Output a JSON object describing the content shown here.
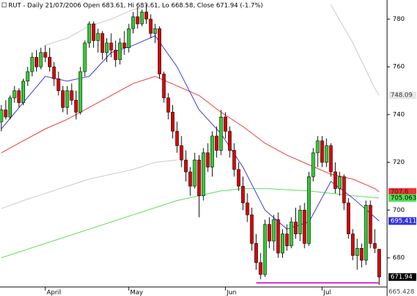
{
  "chart_data": {
    "type": "candlestick",
    "title": "RUT - Daily 21/07/2006 Open 683.61, Hi 683.61, Lo 668.58, Close 671.94 (-1.7%)",
    "open": [
      737,
      742,
      739,
      747,
      750,
      745,
      754,
      758,
      764,
      760,
      766,
      764,
      760,
      755,
      750,
      743,
      750,
      746,
      741,
      758,
      770,
      778,
      771,
      774,
      766,
      770,
      767,
      763,
      770,
      768,
      776,
      781,
      778,
      783,
      780,
      774,
      776,
      757,
      747,
      741,
      733,
      727,
      721,
      716,
      710,
      721,
      706,
      724,
      718,
      731,
      725,
      739,
      733,
      725,
      717,
      710,
      703,
      698,
      686,
      678,
      673,
      694,
      687,
      696,
      682,
      690,
      685,
      695,
      690,
      700,
      686,
      714,
      724,
      729,
      720,
      727,
      716,
      709,
      714,
      703,
      690,
      681,
      684,
      679,
      702,
      686,
      683.61
    ],
    "high": [
      744,
      746,
      748,
      752,
      751,
      755,
      760,
      766,
      767,
      768,
      769,
      768,
      762,
      758,
      752,
      752,
      753,
      750,
      760,
      771,
      779,
      779,
      776,
      775,
      772,
      774,
      771,
      772,
      775,
      778,
      783,
      785,
      784,
      786,
      782,
      778,
      777,
      758,
      749,
      744,
      737,
      731,
      725,
      718,
      724,
      723,
      726,
      728,
      733,
      735,
      742,
      741,
      735,
      728,
      720,
      714,
      707,
      701,
      690,
      682,
      696,
      697,
      698,
      699,
      692,
      694,
      697,
      701,
      702,
      703,
      716,
      726,
      731,
      731,
      730,
      728,
      720,
      716,
      715,
      705,
      692,
      688,
      686,
      704,
      704,
      692,
      683.61
    ],
    "low": [
      733,
      738,
      738,
      745,
      743,
      744,
      752,
      756,
      758,
      759,
      762,
      758,
      752,
      748,
      741,
      740,
      744,
      738,
      740,
      756,
      768,
      768,
      766,
      763,
      762,
      764,
      760,
      761,
      765,
      766,
      774,
      776,
      777,
      778,
      772,
      770,
      755,
      745,
      738,
      730,
      724,
      718,
      712,
      706,
      709,
      697,
      704,
      716,
      714,
      722,
      723,
      730,
      722,
      714,
      708,
      700,
      695,
      683,
      675,
      671,
      672,
      684,
      683,
      680,
      680,
      683,
      684,
      688,
      687,
      684,
      685,
      712,
      718,
      718,
      718,
      714,
      707,
      706,
      700,
      688,
      679,
      675,
      676,
      677,
      684,
      682,
      668.58
    ],
    "close": [
      742,
      739,
      747,
      750,
      745,
      754,
      758,
      764,
      760,
      766,
      764,
      760,
      755,
      750,
      743,
      750,
      746,
      741,
      758,
      770,
      778,
      771,
      774,
      766,
      770,
      767,
      763,
      770,
      768,
      776,
      781,
      778,
      783,
      780,
      774,
      776,
      757,
      747,
      741,
      733,
      727,
      721,
      716,
      710,
      721,
      706,
      724,
      718,
      731,
      725,
      739,
      733,
      725,
      717,
      710,
      703,
      698,
      686,
      678,
      673,
      694,
      687,
      696,
      682,
      690,
      685,
      695,
      690,
      700,
      686,
      714,
      724,
      729,
      720,
      727,
      716,
      709,
      714,
      703,
      690,
      681,
      684,
      679,
      702,
      686,
      684,
      671.94
    ],
    "up_color": "#33cc33",
    "down_color": "#dd0000",
    "ma_x": [
      0,
      5,
      10,
      15,
      20,
      25,
      30,
      35,
      40,
      45,
      50,
      55,
      60,
      65,
      70,
      75,
      80,
      85,
      86
    ],
    "ma_series": [
      {
        "color": "#c8c8c8",
        "values": [
          null,
          null,
          769,
          772,
          777,
          780,
          784,
          786,
          null,
          null,
          null,
          null,
          null,
          null,
          null,
          786,
          770,
          751,
          748.09
        ]
      },
      {
        "color": "#c8c8c8",
        "values": [
          700.6,
          704,
          707,
          710,
          713,
          715,
          717,
          720,
          721,
          null,
          null,
          null,
          null,
          null,
          null,
          null,
          null,
          null,
          null
        ]
      },
      {
        "color": "#55dd55",
        "values": [
          680,
          683,
          686,
          689,
          692,
          695,
          698,
          701,
          704,
          706,
          708,
          709,
          709,
          708.5,
          708,
          707,
          706,
          705.2,
          705.063
        ]
      },
      {
        "color": "#ee3333",
        "values": [
          724,
          729,
          734,
          738,
          743,
          748,
          753,
          756,
          752,
          748,
          741,
          735,
          728,
          723,
          719,
          715,
          713,
          709,
          707.6
        ]
      },
      {
        "color": "#3333dd",
        "values": [
          734,
          745,
          756,
          754,
          756,
          766,
          769,
          773,
          760,
          742,
          732,
          718,
          700,
          692,
          695,
          712,
          705,
          697,
          695.411
        ]
      }
    ],
    "support": {
      "value": 669.5,
      "x": [
        58,
        86
      ],
      "color": "#dd22dd"
    },
    "end_labels": {
      "values": [
        748.09,
        707.6,
        705.063,
        695.411,
        671.94
      ],
      "colors": [
        "#e8e8e8",
        "#ee3333",
        "#55dd55",
        "#3333dd",
        "#000000"
      ],
      "text_colors": [
        "#333333",
        "#222222",
        "#000000",
        "#ffffff",
        "#ffffff"
      ]
    },
    "bottom_label": 665.428,
    "ylim": [
      664,
      788
    ],
    "yticks": [
      680,
      700,
      720,
      740,
      760,
      780
    ],
    "xlim": [
      -0.3,
      87.8
    ],
    "xticks": [
      {
        "value": 10,
        "label": "April"
      },
      {
        "value": 29,
        "label": "May"
      },
      {
        "value": 51,
        "label": "Jun"
      },
      {
        "value": 73,
        "label": "Jul"
      }
    ]
  }
}
